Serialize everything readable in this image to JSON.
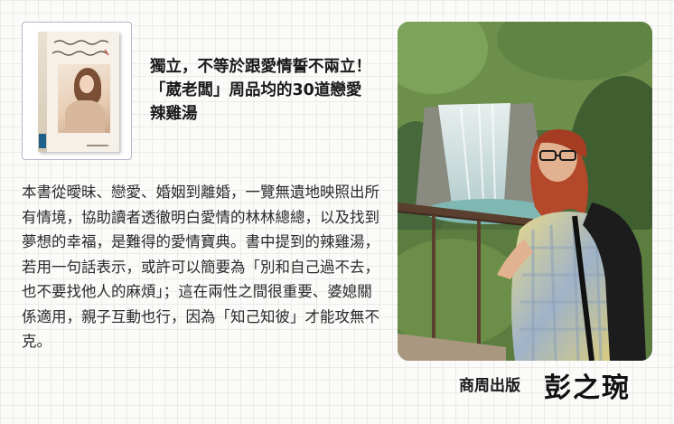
{
  "book": {
    "title": "獨立，不等於跟愛情誓不兩立！「葳老闆」周品均的30道戀愛辣雞湯",
    "description": "本書從曖昧、戀愛、婚姻到離婚，一覽無遺地映照出所有情境，協助讀者透徹明白愛情的林林總總，以及找到夢想的幸福，是難得的愛情寶典。書中提到的辣雞湯，若用一句話表示，或許可以簡要為「別和自己過不去，也不要找他人的麻煩」；這在兩性之間很重要、婆媳關係適用，親子互動也行，因為「知己知彼」才能攻無不克。",
    "cover_image": "book-cover-with-woman-portrait"
  },
  "author": {
    "name": "彭之琬",
    "photo": "author-portrait-by-waterfall"
  },
  "publisher": {
    "name": "商周出版"
  },
  "colors": {
    "card_border": "#b9b2c6",
    "grid_line": "#ecebe8",
    "text": "#2a2a2a"
  }
}
